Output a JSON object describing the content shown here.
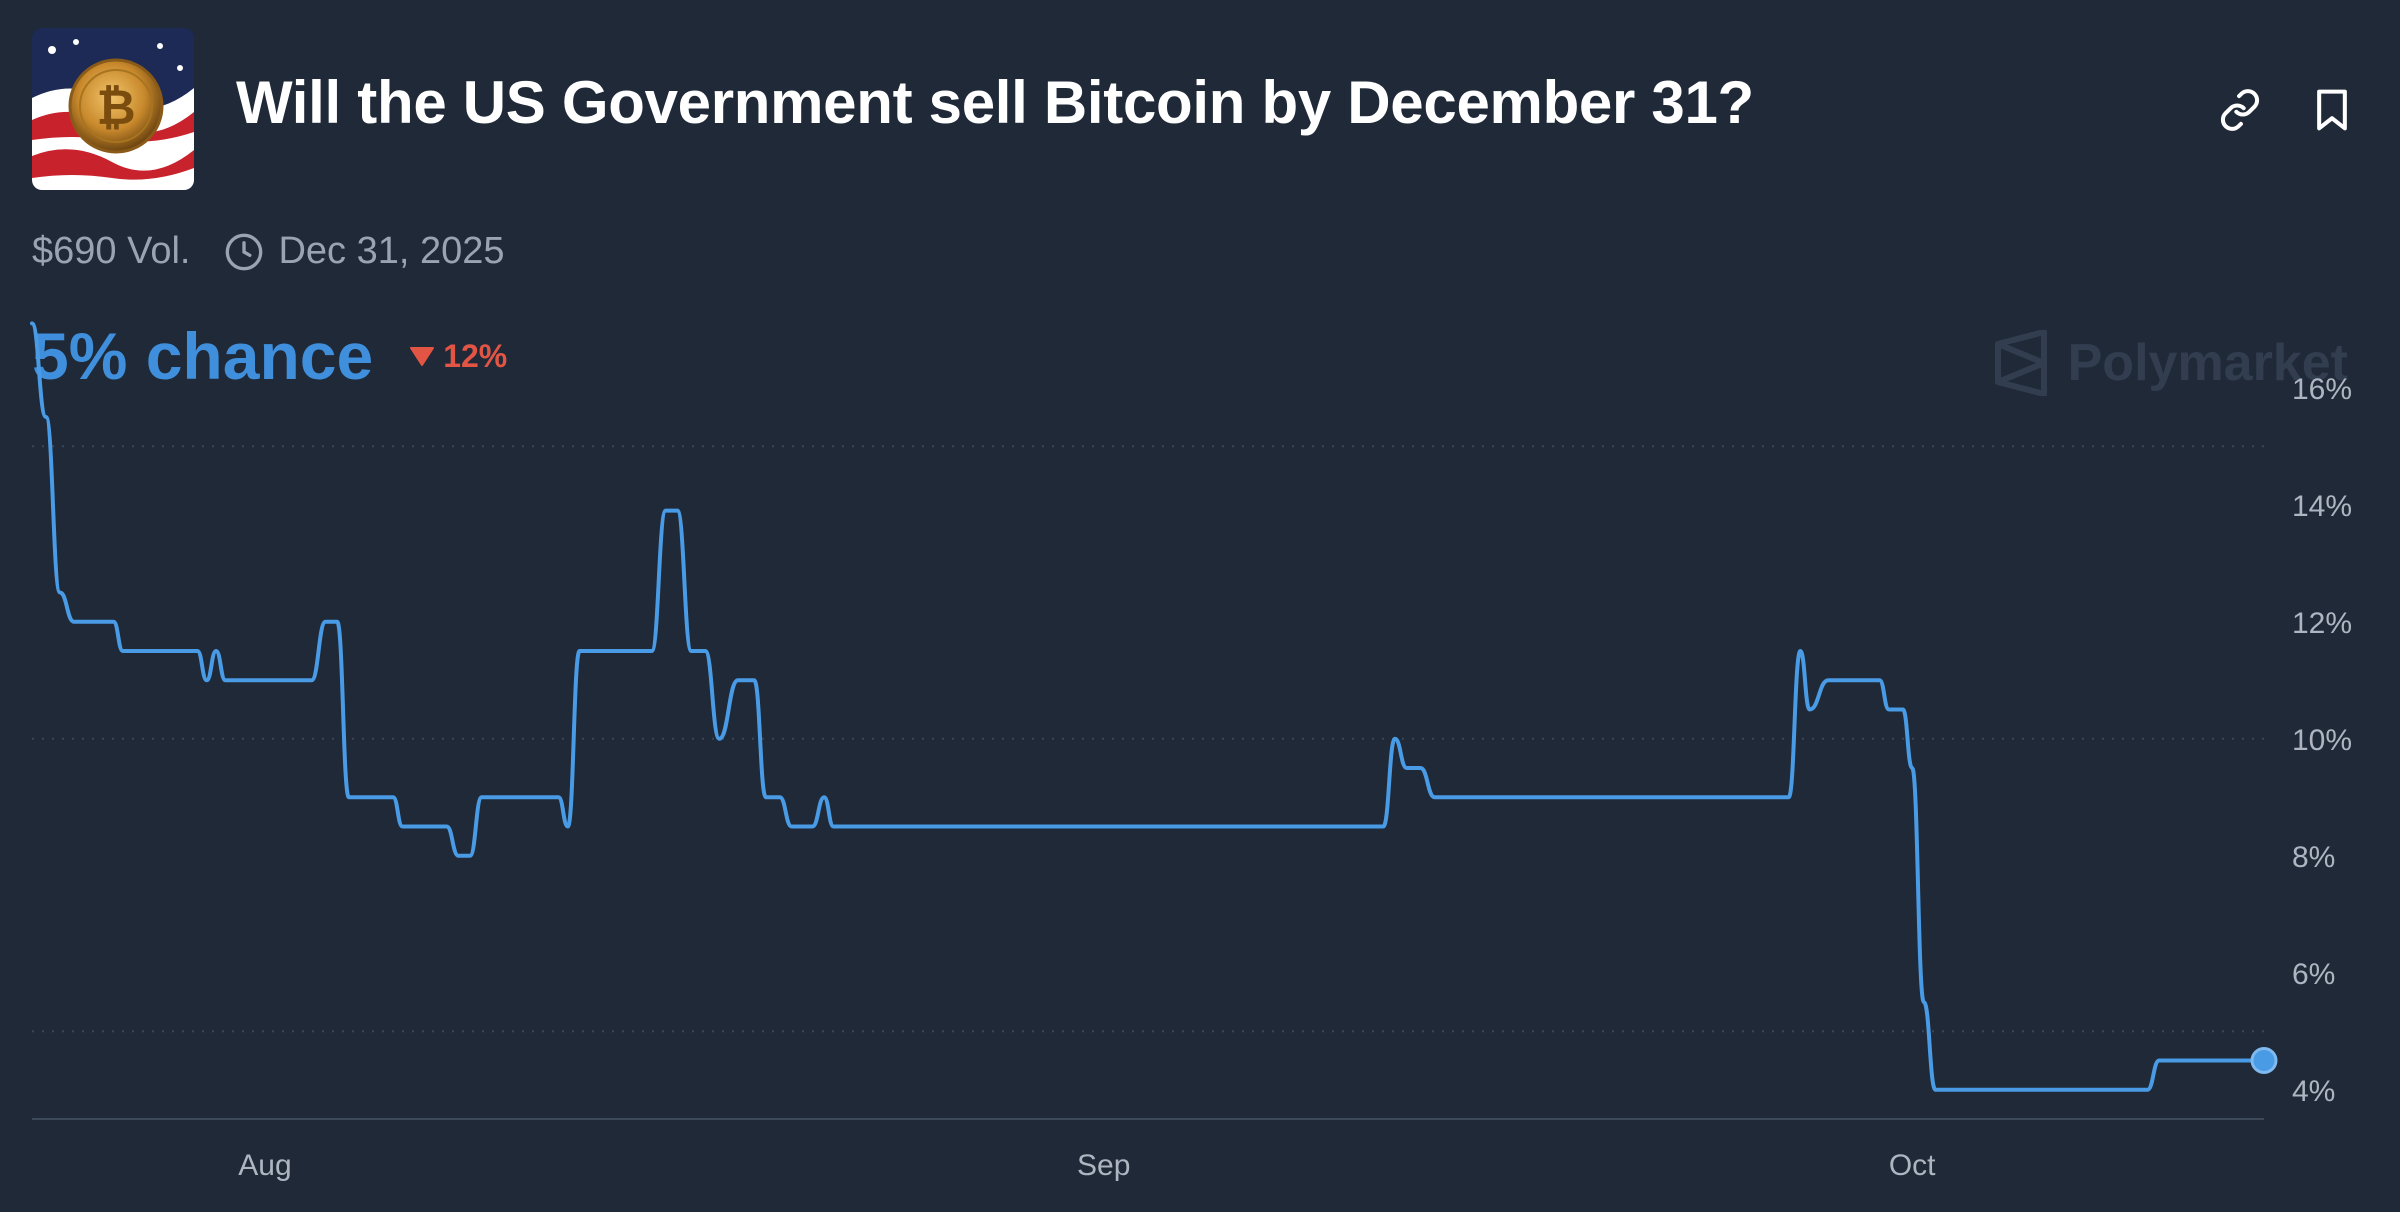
{
  "market": {
    "title": "Will the US Government sell Bitcoin by December 31?",
    "thumbnail_icon": "bitcoin-flag-image",
    "volume": "$690 Vol.",
    "end_date": "Dec 31, 2025",
    "chance_label": "5% chance",
    "change_label": "12%",
    "change_direction": "down"
  },
  "actions": {
    "link_icon": "link-icon",
    "bookmark_icon": "bookmark-icon"
  },
  "brand": {
    "name": "Polymarket"
  },
  "colors": {
    "background": "#1f2937",
    "line": "#4a9be6",
    "chance": "#3f8fdc",
    "negative": "#e25545",
    "grid": "#3a4556",
    "axis_text": "#aeb5c1"
  },
  "chart_data": {
    "type": "line",
    "title": "",
    "xlabel": "",
    "ylabel": "",
    "ylim": [
      3.5,
      17.5
    ],
    "y_ticks": [
      4,
      6,
      8,
      10,
      12,
      14,
      16
    ],
    "y_tick_labels": [
      "4%",
      "6%",
      "8%",
      "10%",
      "12%",
      "14%",
      "16%"
    ],
    "x_ticks": [
      {
        "day": 10,
        "label": "Aug"
      },
      {
        "day": 46,
        "label": "Sep"
      },
      {
        "day": 80.7,
        "label": "Oct"
      }
    ],
    "grid": "horizontal-dotted",
    "series": [
      {
        "points": [
          [
            0,
            17.1
          ],
          [
            0.6,
            15.5
          ],
          [
            1.2,
            12.5
          ],
          [
            1.8,
            12.0
          ],
          [
            3.5,
            12.0
          ],
          [
            3.9,
            11.5
          ],
          [
            7.1,
            11.5
          ],
          [
            7.5,
            11.0
          ],
          [
            7.9,
            11.5
          ],
          [
            8.3,
            11.0
          ],
          [
            12.0,
            11.0
          ],
          [
            12.6,
            12.0
          ],
          [
            13.1,
            12.0
          ],
          [
            13.6,
            9.0
          ],
          [
            15.5,
            9.0
          ],
          [
            15.9,
            8.5
          ],
          [
            17.8,
            8.5
          ],
          [
            18.3,
            8.0
          ],
          [
            18.8,
            8.0
          ],
          [
            19.3,
            9.0
          ],
          [
            22.6,
            9.0
          ],
          [
            23.0,
            8.5
          ],
          [
            23.5,
            11.5
          ],
          [
            26.6,
            11.5
          ],
          [
            27.2,
            13.9
          ],
          [
            27.7,
            13.9
          ],
          [
            28.3,
            11.5
          ],
          [
            28.9,
            11.5
          ],
          [
            29.5,
            10.0
          ],
          [
            30.3,
            11.0
          ],
          [
            31.0,
            11.0
          ],
          [
            31.5,
            9.0
          ],
          [
            32.1,
            9.0
          ],
          [
            32.6,
            8.5
          ],
          [
            33.5,
            8.5
          ],
          [
            34.0,
            9.0
          ],
          [
            34.4,
            8.5
          ],
          [
            58.0,
            8.5
          ],
          [
            58.5,
            10.0
          ],
          [
            59.0,
            9.5
          ],
          [
            59.6,
            9.5
          ],
          [
            60.2,
            9.0
          ],
          [
            75.4,
            9.0
          ],
          [
            75.9,
            11.5
          ],
          [
            76.3,
            10.5
          ],
          [
            77.1,
            11.0
          ],
          [
            79.3,
            11.0
          ],
          [
            79.7,
            10.5
          ],
          [
            80.3,
            10.5
          ],
          [
            80.7,
            9.5
          ],
          [
            81.2,
            5.5
          ],
          [
            81.7,
            4.0
          ],
          [
            90.8,
            4.0
          ],
          [
            91.3,
            4.5
          ],
          [
            95.8,
            4.5
          ]
        ]
      }
    ]
  }
}
